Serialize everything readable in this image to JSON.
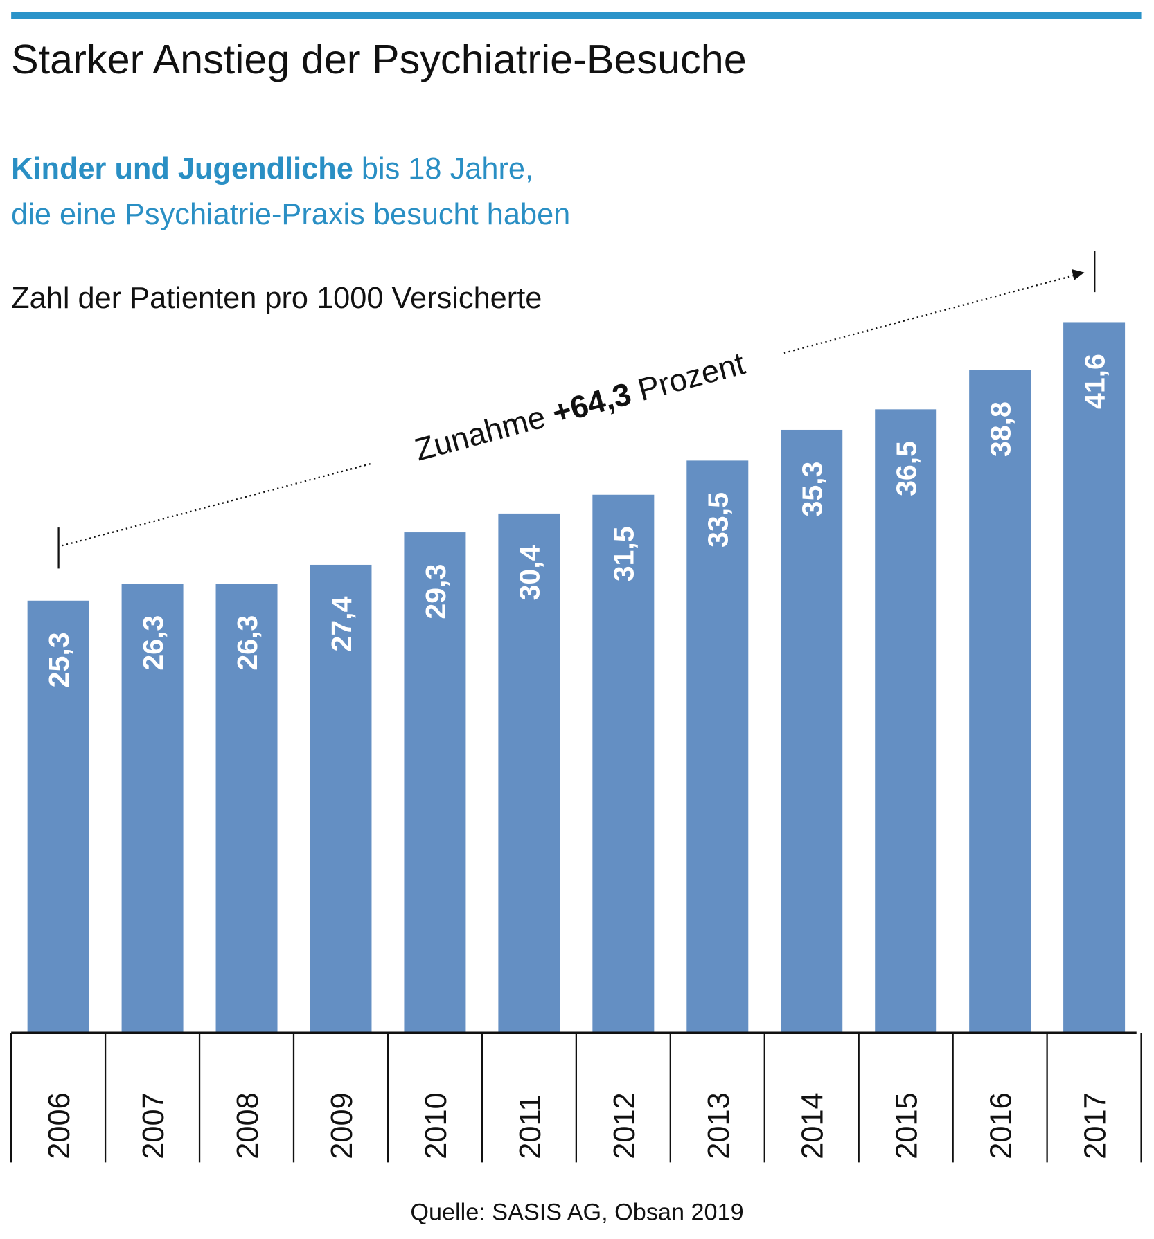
{
  "chart_data": {
    "type": "bar",
    "title": "Starker Anstieg der Psychiatrie-Besuche",
    "subtitle_bold": "Kinder und Jugendliche",
    "subtitle_rest": " bis 18 Jahre,",
    "subtitle_line2": "die eine Psychiatrie-Praxis besucht haben",
    "ylabel": "Zahl der Patienten pro 1000 Versicherte",
    "xlabel": "",
    "categories": [
      "2006",
      "2007",
      "2008",
      "2009",
      "2010",
      "2011",
      "2012",
      "2013",
      "2014",
      "2015",
      "2016",
      "2017"
    ],
    "values": [
      25.3,
      26.3,
      26.3,
      27.4,
      29.3,
      30.4,
      31.5,
      33.5,
      35.3,
      36.5,
      38.8,
      41.6
    ],
    "value_labels": [
      "25,3",
      "26,3",
      "26,3",
      "27,4",
      "29,3",
      "30,4",
      "31,5",
      "33,5",
      "35,3",
      "36,5",
      "38,8",
      "41,6"
    ],
    "ylim": [
      0,
      41.6
    ],
    "grid": false,
    "annotation": {
      "prefix": "Zunahme ",
      "value": "+64,3",
      "suffix": " Prozent",
      "from": "2006",
      "to": "2017"
    },
    "source": "Quelle: SASIS AG, Obsan 2019",
    "colors": {
      "accent": "#2a93c9",
      "bar": "#648fc3",
      "subtitle": "#2a8fc4",
      "text": "#111111"
    }
  }
}
